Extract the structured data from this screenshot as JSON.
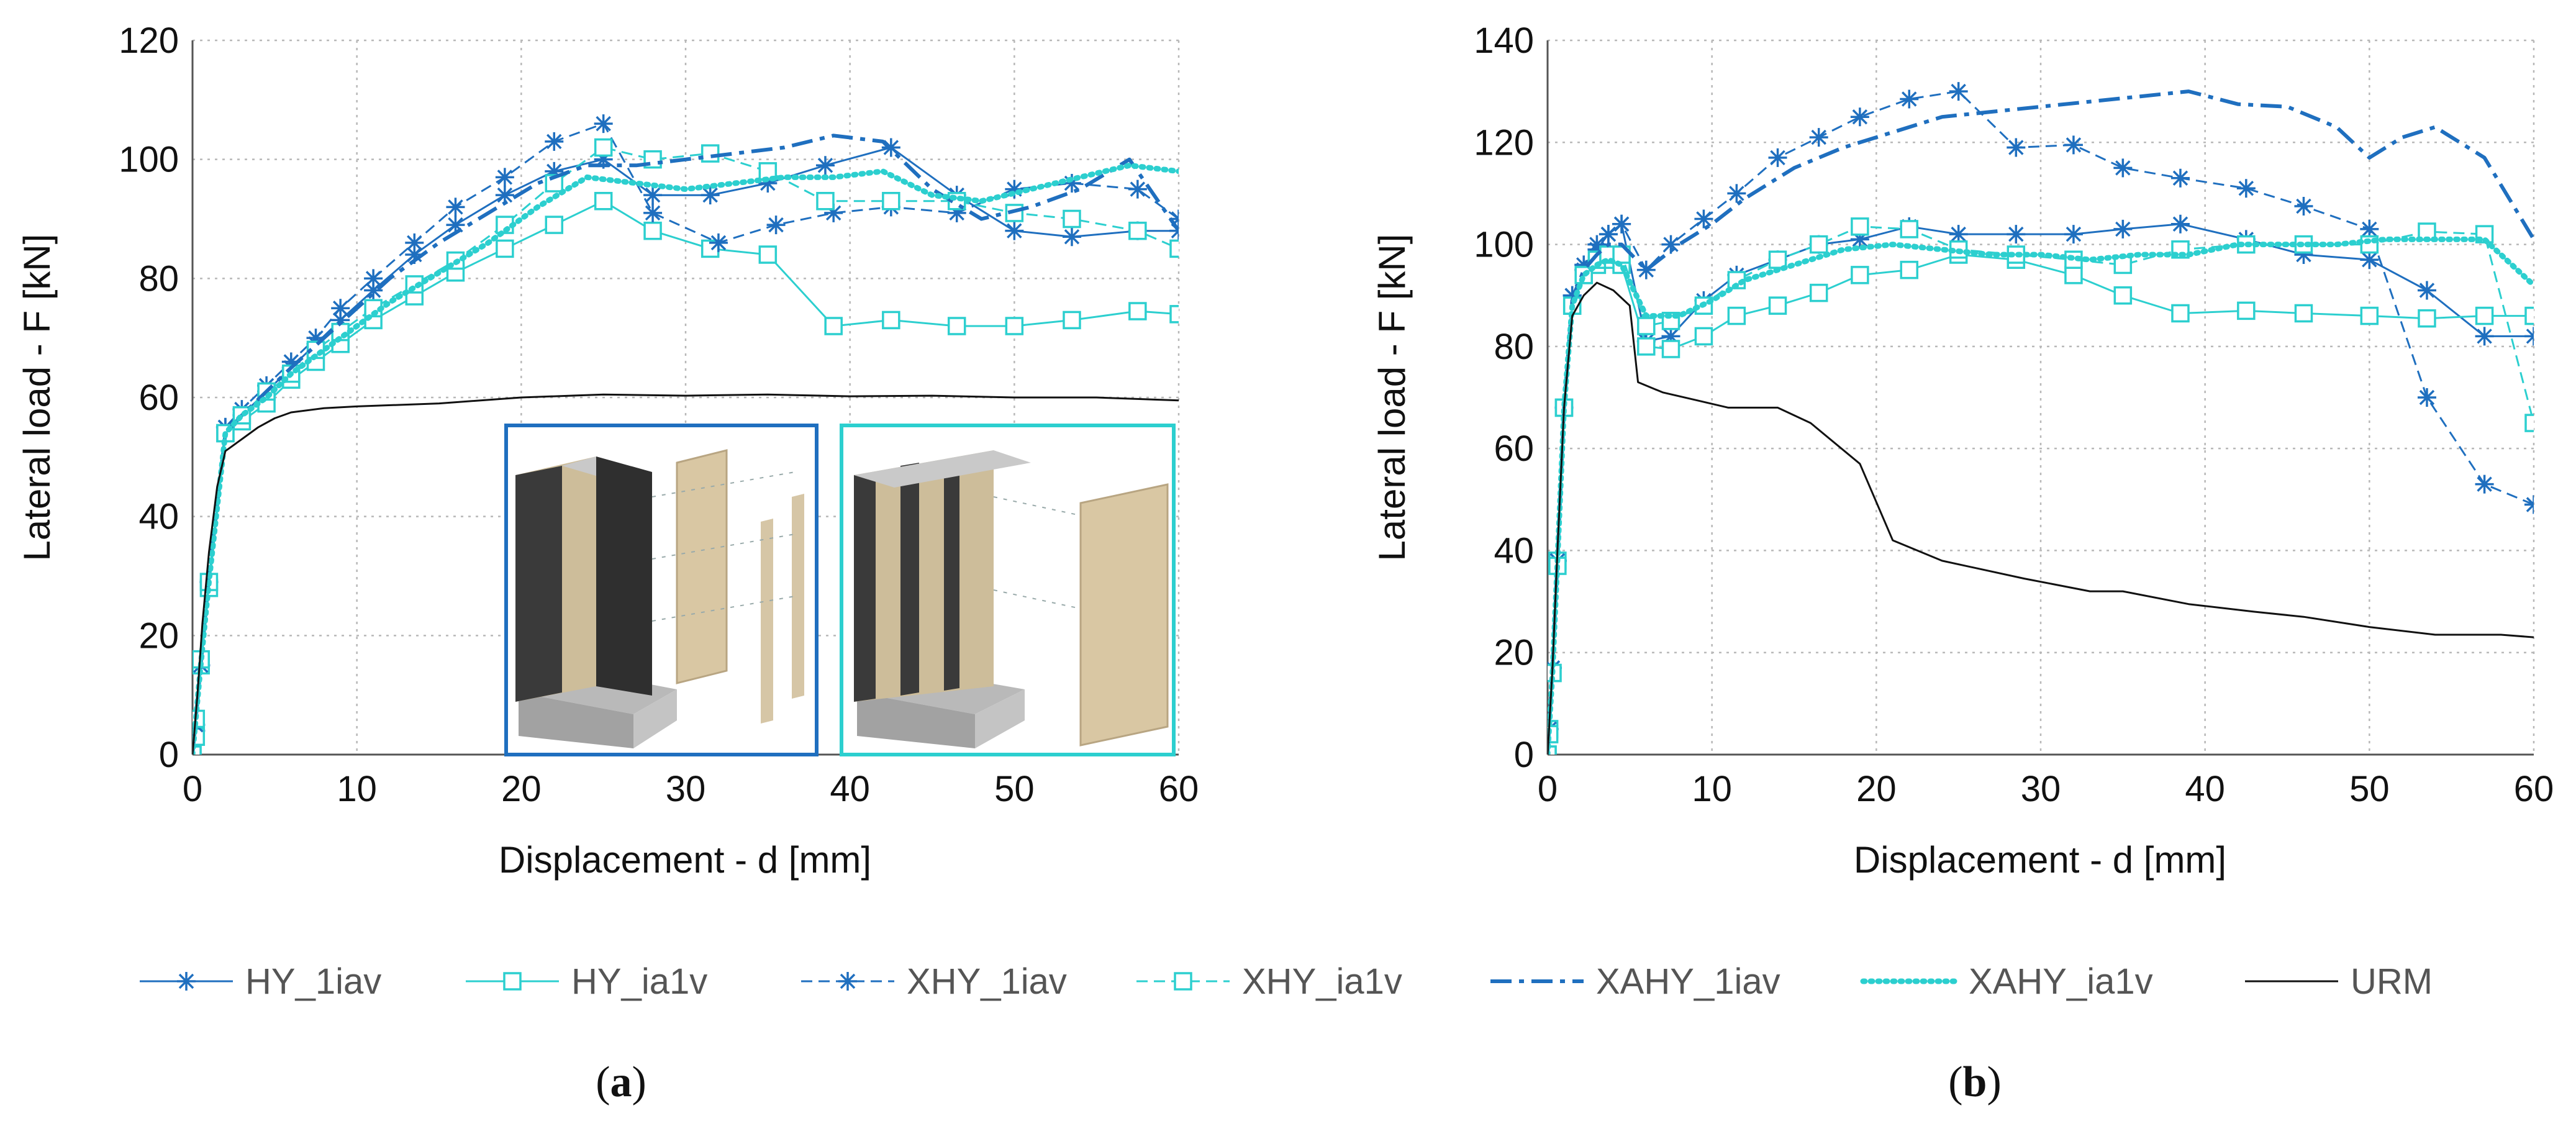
{
  "colors": {
    "blue": "#1f6fbf",
    "cyan": "#2ccfcf",
    "black": "#111111",
    "grid": "#b8b8b8"
  },
  "legend": [
    {
      "name": "HY_1iav",
      "series": "HY_1iav"
    },
    {
      "name": "HY_ia1v",
      "series": "HY_ia1v"
    },
    {
      "name": "XHY_1iav",
      "series": "XHY_1iav"
    },
    {
      "name": "XHY_ia1v",
      "series": "XHY_ia1v"
    },
    {
      "name": "XAHY_1iav",
      "series": "XAHY_1iav"
    },
    {
      "name": "XAHY_ia1v",
      "series": "XAHY_ia1v"
    },
    {
      "name": "URM",
      "series": "URM"
    }
  ],
  "chart_data": [
    {
      "id": "a",
      "panel_label": "(a)",
      "bold_letter": "a",
      "type": "line",
      "xlabel": "Displacement - d [mm]",
      "ylabel": "Lateral load - F [kN]",
      "xlim": [
        0,
        60
      ],
      "ylim": [
        0,
        120
      ],
      "xticks": [
        0,
        10,
        20,
        30,
        40,
        50,
        60
      ],
      "yticks": [
        0,
        20,
        40,
        60,
        80,
        100,
        120
      ],
      "grid": true,
      "inset": "two 3D renderings of reinforced wall specimens (bottom-right)",
      "series": [
        {
          "name": "HY_1iav",
          "color": "#1f6fbf",
          "dash": "solid",
          "marker": "star",
          "width": 3,
          "x": [
            0,
            0.2,
            0.5,
            1,
            2,
            3,
            4.5,
            6,
            7.5,
            9,
            11,
            13.5,
            16,
            19,
            22,
            25,
            28,
            31.5,
            35,
            38.5,
            42.5,
            46.5,
            50,
            53.5,
            57.5,
            60
          ],
          "y": [
            0,
            4,
            15,
            29,
            55,
            57,
            61,
            65,
            69,
            73,
            78,
            84,
            89,
            94,
            98,
            100,
            94,
            94,
            96,
            99,
            102,
            94,
            88,
            87,
            88,
            88
          ]
        },
        {
          "name": "HY_ia1v",
          "color": "#2ccfcf",
          "dash": "solid",
          "marker": "square",
          "width": 3,
          "x": [
            0,
            0.2,
            0.5,
            1,
            2,
            3,
            4.5,
            6,
            7.5,
            9,
            11,
            13.5,
            16,
            19,
            22,
            25,
            28,
            31.5,
            35,
            39,
            42.5,
            46.5,
            50,
            53.5,
            57.5,
            60
          ],
          "y": [
            0,
            3,
            15,
            28,
            54,
            56,
            59,
            63,
            66,
            69,
            73,
            77,
            81,
            85,
            89,
            93,
            88,
            85,
            84,
            72,
            73,
            72,
            72,
            73,
            74.5,
            74
          ]
        },
        {
          "name": "XHY_1iav",
          "color": "#1f6fbf",
          "dash": "18,10",
          "marker": "star",
          "width": 3,
          "x": [
            0,
            0.2,
            0.5,
            1,
            2,
            3,
            4.5,
            6,
            7.5,
            9,
            11,
            13.5,
            16,
            19,
            22,
            25,
            28,
            32,
            35.5,
            39,
            42.5,
            46.5,
            50,
            53.5,
            57.5,
            60
          ],
          "y": [
            0,
            5,
            15,
            29,
            55,
            58,
            62,
            66,
            70,
            75,
            80,
            86,
            92,
            97,
            103,
            106,
            91,
            86,
            89,
            91,
            92,
            91,
            95,
            96,
            95,
            90
          ]
        },
        {
          "name": "XHY_ia1v",
          "color": "#2ccfcf",
          "dash": "18,10",
          "marker": "square",
          "width": 3,
          "x": [
            0,
            0.2,
            0.5,
            1,
            2,
            3,
            4.5,
            6,
            7.5,
            9,
            11,
            13.5,
            16,
            19,
            22,
            25,
            28,
            31.5,
            35,
            38.5,
            42.5,
            46.5,
            50,
            53.5,
            57.5,
            60
          ],
          "y": [
            0,
            6,
            16,
            29,
            54,
            57,
            61,
            64,
            68,
            71,
            75,
            79,
            83,
            89,
            96,
            102,
            100,
            101,
            98,
            93,
            93,
            93,
            91,
            90,
            88,
            85
          ]
        },
        {
          "name": "XAHY_1iav",
          "color": "#1f6fbf",
          "dash": "34,12,8,12",
          "marker": "none",
          "width": 6,
          "x": [
            0,
            0.5,
            1,
            2,
            3,
            4.5,
            6,
            8,
            10,
            12,
            15,
            18,
            21,
            24,
            27,
            30,
            33,
            36,
            39,
            42,
            45,
            48,
            51,
            54,
            57,
            60
          ],
          "y": [
            0,
            15,
            30,
            54,
            57,
            61,
            65,
            70,
            75,
            80,
            86,
            91,
            96,
            99,
            99,
            100,
            101,
            102,
            104,
            103,
            95,
            90,
            92,
            95,
            100,
            88
          ]
        },
        {
          "name": "XAHY_ia1v",
          "color": "#2ccfcf",
          "dash": "3,9",
          "marker": "none",
          "width": 9,
          "x": [
            0,
            0.5,
            1,
            2,
            3,
            4.5,
            6,
            8,
            10,
            12,
            15,
            18,
            21,
            24,
            27,
            30,
            33,
            36,
            39,
            42,
            45,
            48,
            51,
            54,
            57,
            60
          ],
          "y": [
            0,
            15,
            29,
            54,
            57,
            60,
            64,
            68,
            72,
            76,
            81,
            86,
            92,
            97,
            96,
            95,
            96,
            97,
            97,
            98,
            94,
            93,
            95,
            97,
            99,
            98
          ]
        },
        {
          "name": "URM",
          "color": "#111111",
          "dash": "solid",
          "marker": "none",
          "width": 3,
          "x": [
            0,
            0.3,
            0.6,
            1,
            1.5,
            2,
            3,
            4,
            5,
            6,
            8,
            10,
            15,
            20,
            25,
            30,
            35,
            40,
            45,
            50,
            55,
            60
          ],
          "y": [
            0,
            10,
            22,
            34,
            45,
            51,
            53,
            55,
            56.5,
            57.5,
            58.2,
            58.5,
            59,
            60,
            60.5,
            60.3,
            60.5,
            60.2,
            60.3,
            60,
            60,
            59.5
          ]
        }
      ]
    },
    {
      "id": "b",
      "panel_label": "(b)",
      "bold_letter": "b",
      "type": "line",
      "xlabel": "Displacement - d [mm]",
      "ylabel": "Lateral load - F [kN]",
      "xlim": [
        0,
        60
      ],
      "ylim": [
        0,
        140
      ],
      "xticks": [
        0,
        10,
        20,
        30,
        40,
        50,
        60
      ],
      "yticks": [
        0,
        20,
        40,
        60,
        80,
        100,
        120,
        140
      ],
      "grid": true,
      "series": [
        {
          "name": "HY_1iav",
          "color": "#1f6fbf",
          "dash": "solid",
          "marker": "star",
          "width": 3,
          "x": [
            0,
            0.1,
            0.3,
            0.6,
            1,
            1.5,
            2.2,
            3,
            3.7,
            4.5,
            6,
            7.5,
            9.5,
            11.5,
            14,
            16.5,
            19,
            22,
            25,
            28.5,
            32,
            35,
            38.5,
            42.5,
            46,
            50,
            53.5,
            57,
            60
          ],
          "y": [
            0,
            5,
            17,
            38,
            68,
            90,
            95,
            99,
            102,
            104,
            81,
            82,
            89,
            94,
            97,
            100,
            101,
            103.5,
            102,
            102,
            102,
            103,
            104,
            101,
            98,
            97,
            91,
            82,
            82
          ]
        },
        {
          "name": "HY_ia1v",
          "color": "#2ccfcf",
          "dash": "solid",
          "marker": "square",
          "width": 3,
          "x": [
            0,
            0.1,
            0.3,
            0.6,
            1,
            1.5,
            2.2,
            3,
            3.7,
            4.5,
            6,
            7.5,
            9.5,
            11.5,
            14,
            16.5,
            19,
            22,
            25,
            28.5,
            32,
            35,
            38.5,
            42.5,
            46,
            50,
            53.5,
            57,
            60
          ],
          "y": [
            0,
            5,
            16,
            38,
            68,
            88,
            94,
            96,
            97,
            96,
            80,
            79.5,
            82,
            86,
            88,
            90.5,
            94,
            95,
            98,
            97,
            94,
            90,
            86.5,
            87,
            86.5,
            86,
            85.5,
            86,
            86
          ]
        },
        {
          "name": "XHY_1iav",
          "color": "#1f6fbf",
          "dash": "18,10",
          "marker": "star",
          "width": 3,
          "x": [
            0,
            0.1,
            0.3,
            0.6,
            1,
            1.5,
            2.2,
            3,
            3.7,
            4.5,
            6,
            7.5,
            9.5,
            11.5,
            14,
            16.5,
            19,
            22,
            25,
            28.5,
            32,
            35,
            38.5,
            42.5,
            46,
            50,
            53.5,
            57,
            60
          ],
          "y": [
            0,
            5,
            17,
            38,
            68,
            90,
            96,
            100,
            102,
            104,
            95,
            100,
            105,
            110,
            117,
            121,
            125,
            128.5,
            130,
            119,
            119.5,
            115,
            113,
            111,
            107.5,
            103,
            70,
            53,
            49
          ]
        },
        {
          "name": "XHY_ia1v",
          "color": "#2ccfcf",
          "dash": "18,10",
          "marker": "square",
          "width": 3,
          "x": [
            0,
            0.1,
            0.3,
            0.6,
            1,
            1.5,
            2.2,
            3,
            3.7,
            4.5,
            6,
            7.5,
            9.5,
            11.5,
            14,
            16.5,
            19,
            22,
            25,
            28.5,
            32,
            35,
            38.5,
            42.5,
            46,
            50,
            53.5,
            57,
            60
          ],
          "y": [
            0,
            4,
            16,
            37,
            68,
            88,
            94,
            97,
            98,
            98,
            84,
            85,
            88,
            93,
            97,
            100,
            103.5,
            103,
            99,
            98,
            97,
            96,
            99,
            100,
            100,
            100,
            102.5,
            102,
            65
          ]
        },
        {
          "name": "XAHY_1iav",
          "color": "#1f6fbf",
          "dash": "34,12,8,12",
          "marker": "none",
          "width": 6,
          "x": [
            0,
            0.3,
            0.6,
            1,
            1.5,
            2.2,
            3,
            3.7,
            4.5,
            6,
            8,
            10,
            12,
            15,
            18,
            21,
            24,
            27,
            30,
            33,
            36,
            39,
            42,
            45,
            48,
            50,
            52,
            54,
            57,
            60
          ],
          "y": [
            0,
            17,
            38,
            68,
            89,
            95,
            98,
            100,
            100,
            95,
            100,
            104,
            109,
            115,
            119,
            122,
            125,
            126,
            127,
            128,
            129,
            130,
            127.5,
            127,
            123,
            117,
            121,
            123,
            117,
            101
          ]
        },
        {
          "name": "XAHY_ia1v",
          "color": "#2ccfcf",
          "dash": "3,9",
          "marker": "none",
          "width": 9,
          "x": [
            0,
            0.3,
            0.6,
            1,
            1.5,
            2.2,
            3,
            3.7,
            4.5,
            6,
            8,
            10,
            12,
            15,
            18,
            21,
            24,
            27,
            30,
            33,
            36,
            39,
            42,
            45,
            48,
            51,
            54,
            57,
            60
          ],
          "y": [
            0,
            16,
            38,
            68,
            88,
            94,
            96,
            97,
            96,
            86,
            86,
            89,
            93,
            96,
            99,
            100,
            99,
            98,
            98,
            97,
            98,
            98,
            100,
            100,
            100,
            101,
            101,
            101,
            92
          ]
        },
        {
          "name": "URM",
          "color": "#111111",
          "dash": "solid",
          "marker": "none",
          "width": 3,
          "x": [
            0,
            0.3,
            0.6,
            1,
            1.5,
            2.2,
            3,
            4,
            5,
            5.5,
            7,
            9,
            11,
            14,
            16,
            19,
            21,
            24,
            29,
            33,
            35,
            39,
            43,
            46,
            50,
            54,
            58,
            60
          ],
          "y": [
            0,
            17,
            40,
            68,
            86,
            90,
            92.5,
            91,
            88,
            73,
            71,
            69.5,
            68,
            68,
            65,
            57,
            42,
            38,
            34.5,
            32,
            32,
            29.5,
            28,
            27,
            25,
            23.5,
            23.5,
            23
          ]
        }
      ]
    }
  ]
}
